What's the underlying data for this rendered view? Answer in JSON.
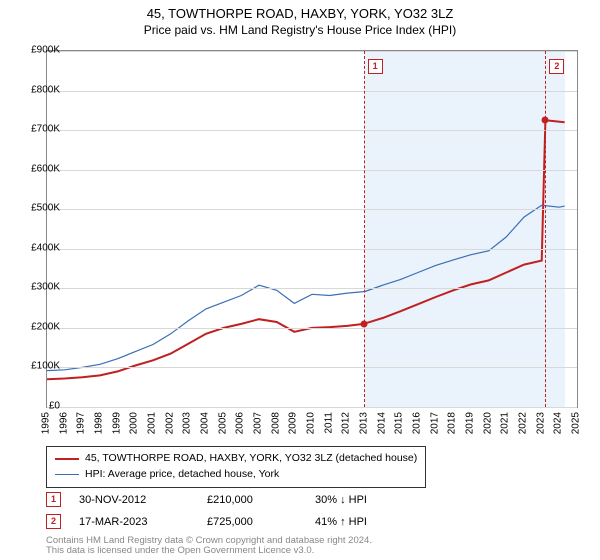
{
  "title": "45, TOWTHORPE ROAD, HAXBY, YORK, YO32 3LZ",
  "subtitle": "Price paid vs. HM Land Registry's House Price Index (HPI)",
  "chart": {
    "type": "line",
    "background_color": "#ffffff",
    "shaded_band_color": "#eaf2fb",
    "grid_color": "#d8d8d8",
    "border_color": "#888888",
    "y": {
      "label_prefix": "£",
      "min": 0,
      "max": 900,
      "step": 100,
      "unit_suffix": "K",
      "ticks": [
        0,
        100,
        200,
        300,
        400,
        500,
        600,
        700,
        800,
        900
      ]
    },
    "x": {
      "min": 1995,
      "max": 2025,
      "step": 1,
      "ticks": [
        1995,
        1996,
        1997,
        1998,
        1999,
        2000,
        2001,
        2002,
        2003,
        2004,
        2005,
        2006,
        2007,
        2008,
        2009,
        2010,
        2011,
        2012,
        2013,
        2014,
        2015,
        2016,
        2017,
        2018,
        2019,
        2020,
        2021,
        2022,
        2023,
        2024,
        2025
      ]
    },
    "shaded_x_range": [
      2013,
      2024.3
    ],
    "series": [
      {
        "name": "property_price",
        "color": "#c02020",
        "width": 2,
        "points": [
          [
            1995,
            70
          ],
          [
            1996,
            72
          ],
          [
            1997,
            75
          ],
          [
            1998,
            80
          ],
          [
            1999,
            90
          ],
          [
            2000,
            105
          ],
          [
            2001,
            118
          ],
          [
            2002,
            135
          ],
          [
            2003,
            160
          ],
          [
            2004,
            185
          ],
          [
            2005,
            200
          ],
          [
            2006,
            210
          ],
          [
            2007,
            222
          ],
          [
            2008,
            215
          ],
          [
            2009,
            190
          ],
          [
            2010,
            200
          ],
          [
            2011,
            202
          ],
          [
            2012,
            205
          ],
          [
            2012.92,
            210
          ],
          [
            2014,
            225
          ],
          [
            2015,
            242
          ],
          [
            2016,
            260
          ],
          [
            2017,
            278
          ],
          [
            2018,
            295
          ],
          [
            2019,
            310
          ],
          [
            2020,
            320
          ],
          [
            2021,
            340
          ],
          [
            2022,
            360
          ],
          [
            2023,
            370
          ],
          [
            2023.21,
            725
          ],
          [
            2024.3,
            720
          ]
        ]
      },
      {
        "name": "hpi",
        "color": "#3a6fb7",
        "width": 1.2,
        "points": [
          [
            1995,
            92
          ],
          [
            1996,
            94
          ],
          [
            1997,
            100
          ],
          [
            1998,
            108
          ],
          [
            1999,
            122
          ],
          [
            2000,
            140
          ],
          [
            2001,
            158
          ],
          [
            2002,
            185
          ],
          [
            2003,
            218
          ],
          [
            2004,
            248
          ],
          [
            2005,
            265
          ],
          [
            2006,
            282
          ],
          [
            2007,
            308
          ],
          [
            2008,
            295
          ],
          [
            2009,
            262
          ],
          [
            2010,
            285
          ],
          [
            2011,
            282
          ],
          [
            2012,
            288
          ],
          [
            2013,
            292
          ],
          [
            2014,
            308
          ],
          [
            2015,
            322
          ],
          [
            2016,
            340
          ],
          [
            2017,
            358
          ],
          [
            2018,
            372
          ],
          [
            2019,
            385
          ],
          [
            2020,
            395
          ],
          [
            2021,
            430
          ],
          [
            2022,
            480
          ],
          [
            2023,
            510
          ],
          [
            2024,
            505
          ],
          [
            2024.3,
            508
          ]
        ]
      }
    ],
    "markers": [
      {
        "n": "1",
        "x": 2012.92,
        "y": 210,
        "dash_x": 2012.92,
        "box_top": true
      },
      {
        "n": "2",
        "x": 2023.21,
        "y": 725,
        "dash_x": 2023.21,
        "box_top": true
      }
    ]
  },
  "legend": {
    "items": [
      {
        "color": "#c02020",
        "width": 2,
        "label": "45, TOWTHORPE ROAD, HAXBY, YORK, YO32 3LZ (detached house)"
      },
      {
        "color": "#3a6fb7",
        "width": 1.2,
        "label": "HPI: Average price, detached house, York"
      }
    ]
  },
  "sales": [
    {
      "n": "1",
      "date": "30-NOV-2012",
      "price": "£210,000",
      "delta": "30% ↓ HPI"
    },
    {
      "n": "2",
      "date": "17-MAR-2023",
      "price": "£725,000",
      "delta": "41% ↑ HPI"
    }
  ],
  "footer": {
    "line1": "Contains HM Land Registry data © Crown copyright and database right 2024.",
    "line2": "This data is licensed under the Open Government Licence v3.0."
  }
}
